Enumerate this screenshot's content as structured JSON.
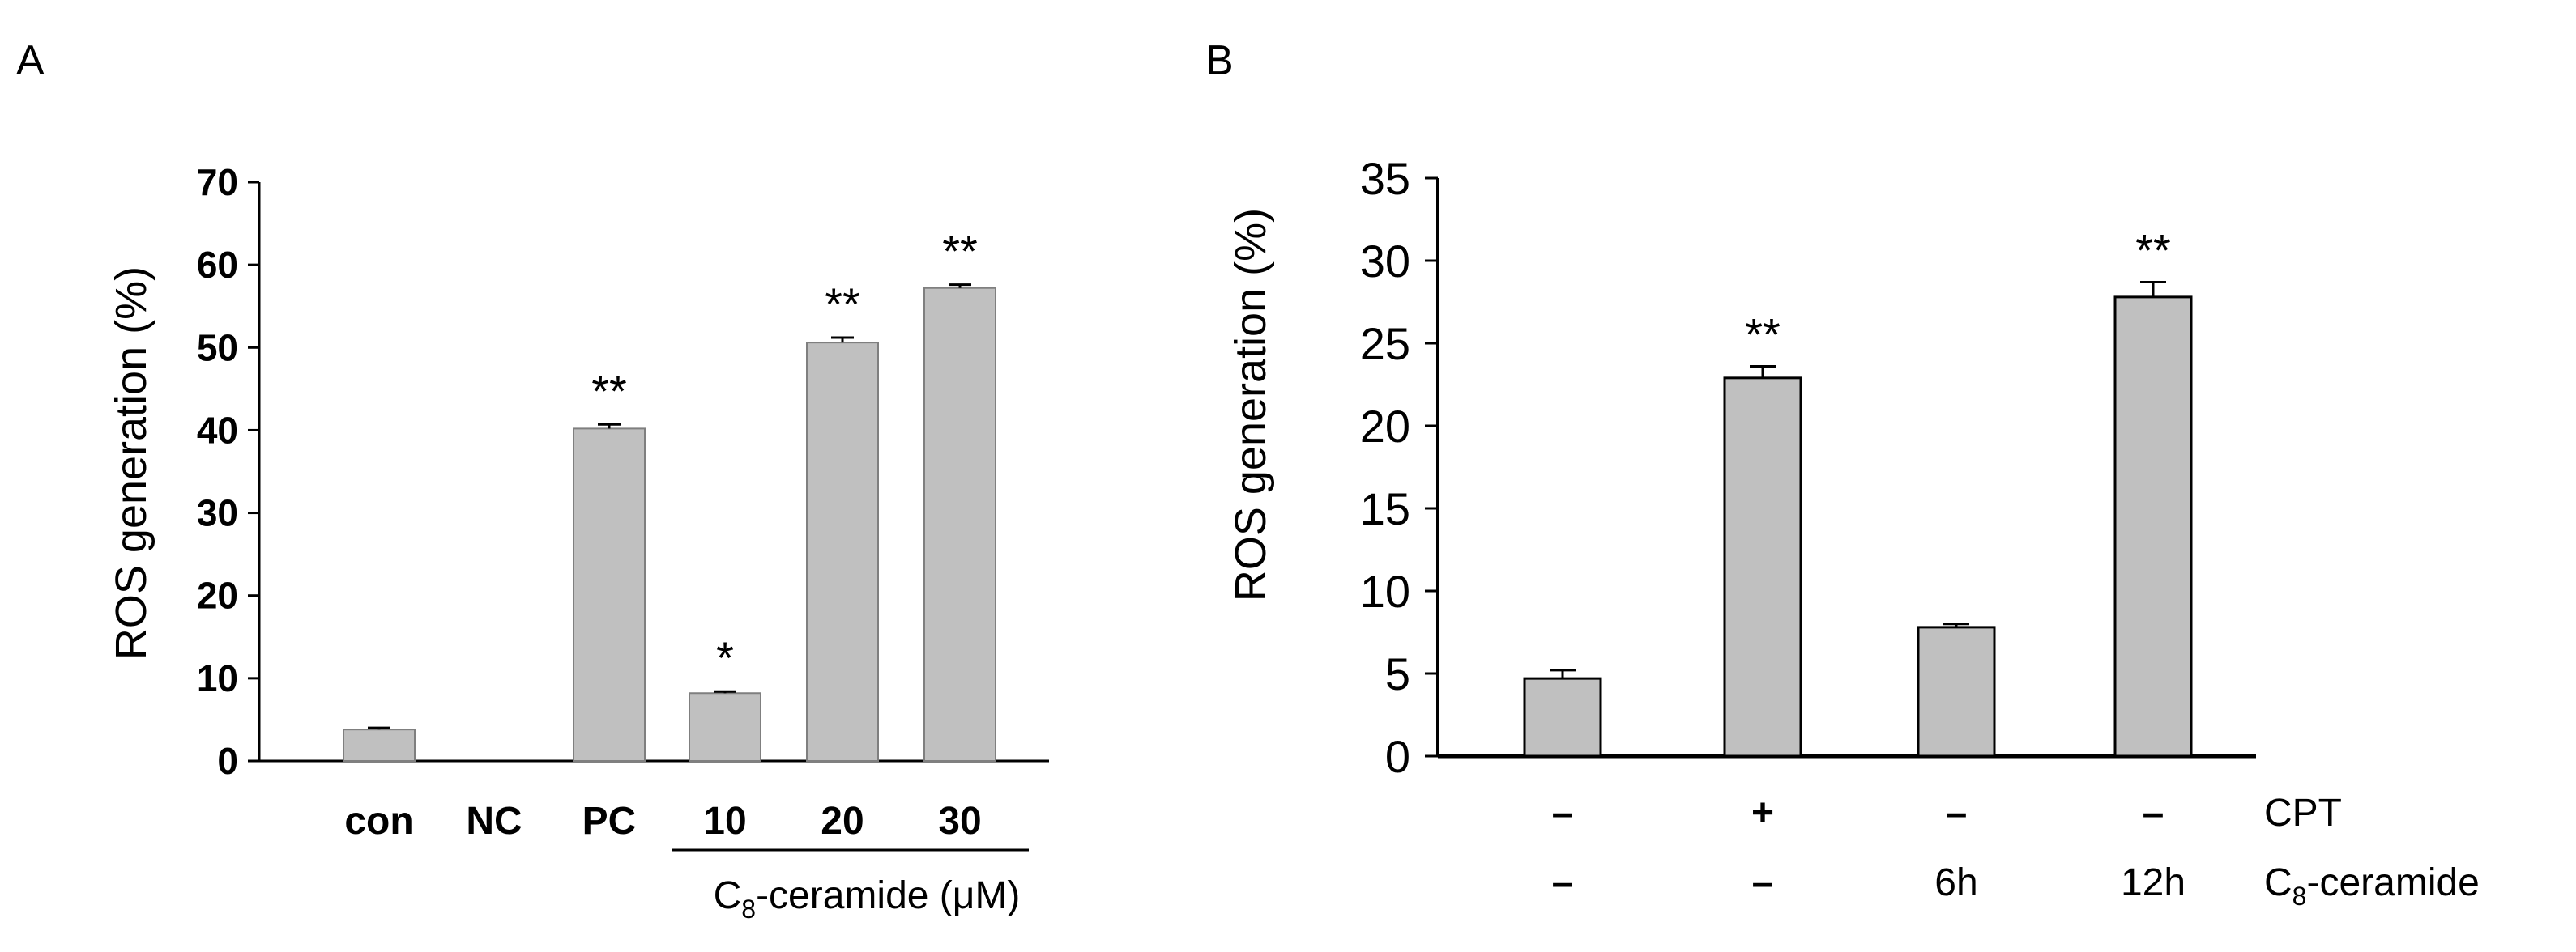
{
  "chart_data": [
    {
      "panel": "A",
      "type": "bar",
      "ylabel": "ROS generation (%)",
      "ylim": [
        0,
        70
      ],
      "yticks": [
        "0",
        "10",
        "20",
        "30",
        "40",
        "50",
        "60",
        "70"
      ],
      "categories": [
        "con",
        "NC",
        "PC",
        "10",
        "20",
        "30"
      ],
      "values": [
        3.8,
        0,
        40.2,
        8.2,
        50.6,
        57.2
      ],
      "errors": [
        0.2,
        0,
        0.5,
        0.2,
        0.6,
        0.4
      ],
      "significance": [
        "",
        "",
        "**",
        "*",
        "**",
        "**"
      ],
      "group_label_prefix": "C",
      "group_label_sub": "8",
      "group_label_suffix": "-ceramide (μM)"
    },
    {
      "panel": "B",
      "type": "bar",
      "ylabel": "ROS generation (%)",
      "ylim": [
        0,
        35
      ],
      "yticks": [
        "0",
        "5",
        "10",
        "15",
        "20",
        "25",
        "30",
        "35"
      ],
      "values": [
        4.7,
        22.9,
        7.8,
        27.8
      ],
      "errors": [
        0.5,
        0.7,
        0.2,
        0.9
      ],
      "significance": [
        "",
        "**",
        "",
        "**"
      ],
      "rows": [
        {
          "name": "CPT",
          "values": [
            "–",
            "+",
            "–",
            "–"
          ]
        },
        {
          "name_prefix": "C",
          "name_sub": "8",
          "name_suffix": "-ceramide",
          "values": [
            "–",
            "–",
            "6h",
            "12h"
          ]
        }
      ]
    }
  ]
}
